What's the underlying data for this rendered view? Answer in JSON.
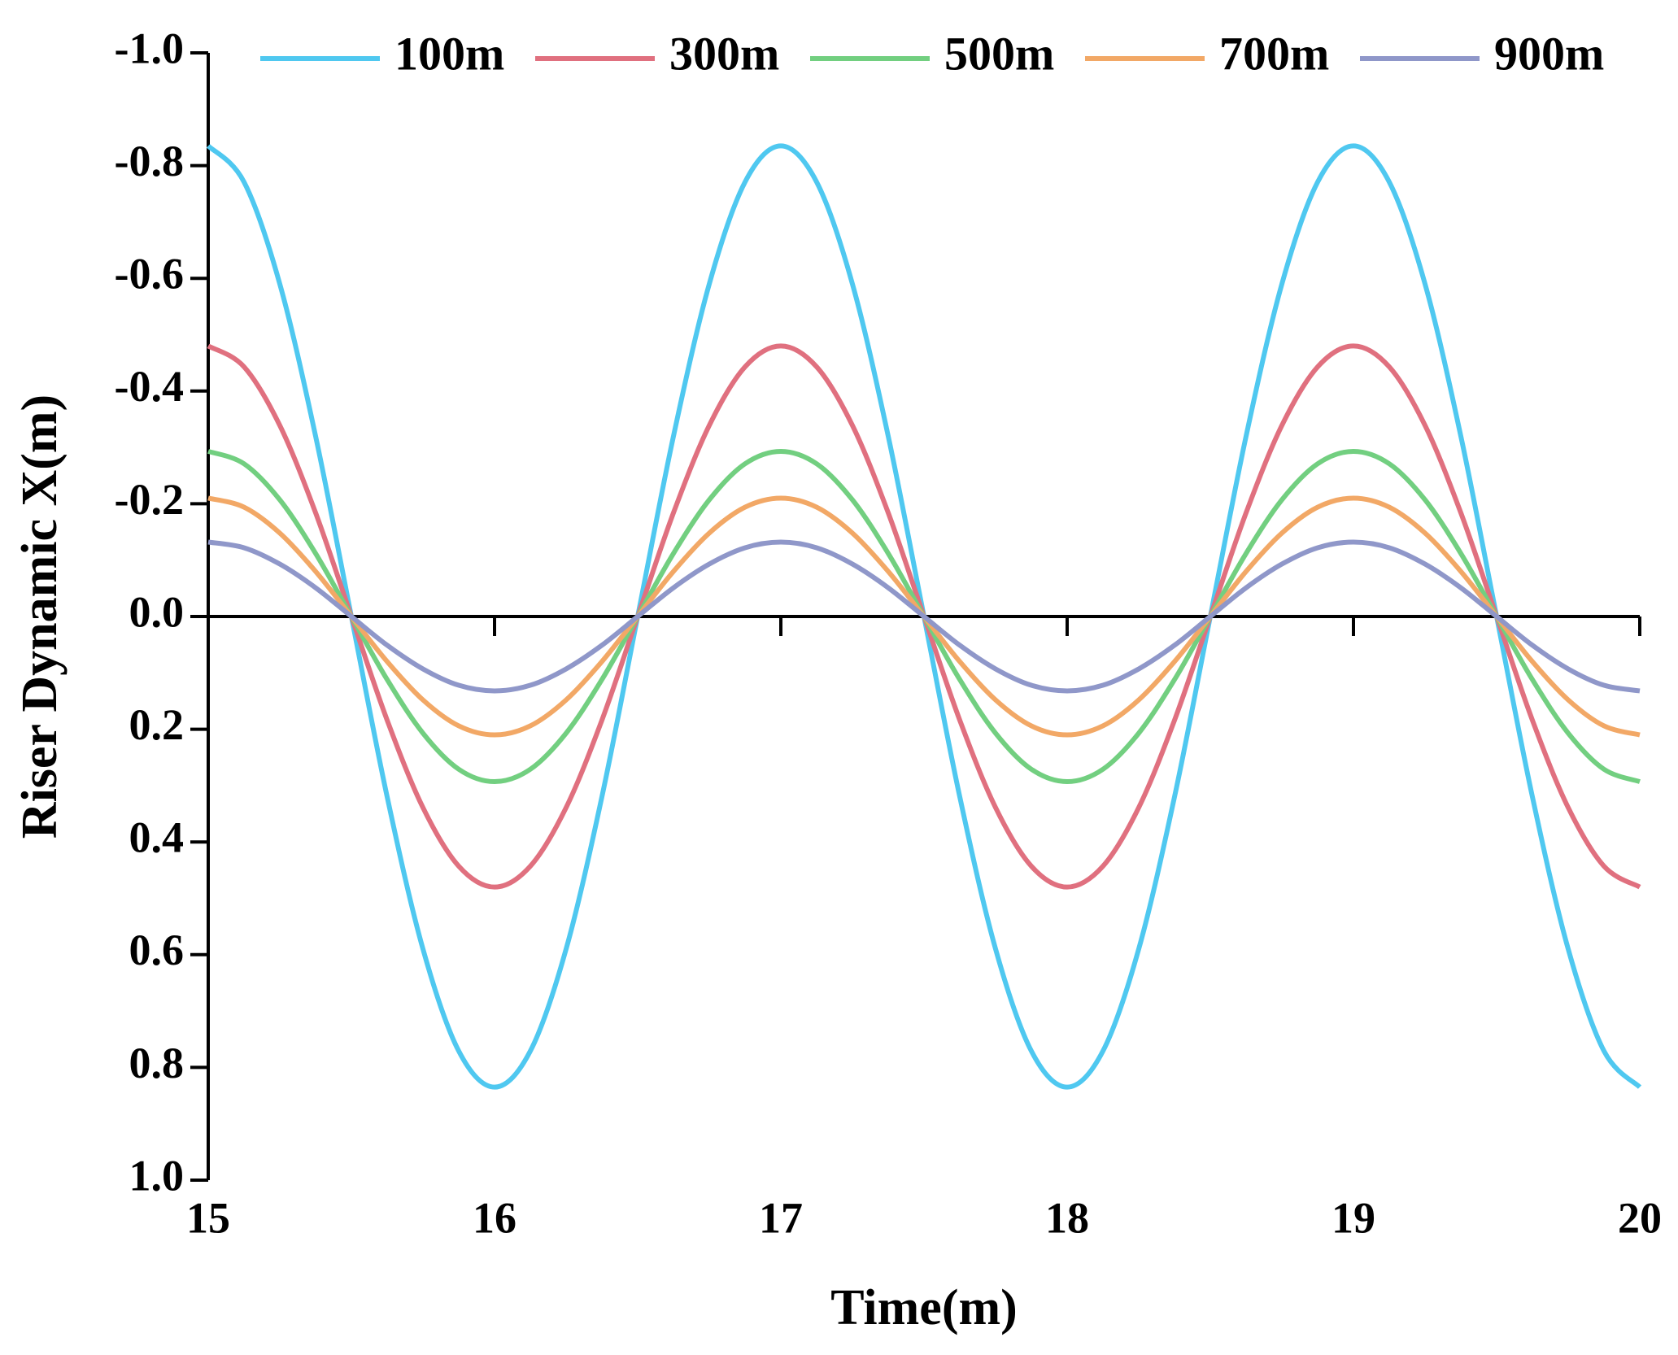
{
  "chart_data": {
    "type": "line",
    "x_label": "Time(m)",
    "y_label": "Riser Dynamic X(m)",
    "x": [
      15,
      15.125,
      15.25,
      15.375,
      15.5,
      15.625,
      15.75,
      15.875,
      16,
      16.125,
      16.25,
      16.375,
      16.5,
      16.625,
      16.75,
      16.875,
      17,
      17.125,
      17.25,
      17.375,
      17.5,
      17.625,
      17.75,
      17.875,
      18,
      18.125,
      18.25,
      18.375,
      18.5,
      18.625,
      18.75,
      18.875,
      19,
      19.125,
      19.25,
      19.375,
      19.5,
      19.625,
      19.75,
      19.875,
      20
    ],
    "series": [
      {
        "name": "100m",
        "color": "#4fc8f0",
        "values": [
          -0.835,
          -0.771,
          -0.59,
          -0.32,
          0,
          0.32,
          0.59,
          0.771,
          0.835,
          0.771,
          0.59,
          0.32,
          0,
          -0.32,
          -0.59,
          -0.771,
          -0.835,
          -0.771,
          -0.59,
          -0.32,
          0,
          0.32,
          0.59,
          0.771,
          0.835,
          0.771,
          0.59,
          0.32,
          0,
          -0.32,
          -0.59,
          -0.771,
          -0.835,
          -0.771,
          -0.59,
          -0.32,
          0,
          0.32,
          0.59,
          0.771,
          0.835
        ]
      },
      {
        "name": "300m",
        "color": "#e0707f",
        "values": [
          -0.48,
          -0.443,
          -0.339,
          -0.184,
          0,
          0.184,
          0.339,
          0.443,
          0.48,
          0.443,
          0.339,
          0.184,
          0,
          -0.184,
          -0.339,
          -0.443,
          -0.48,
          -0.443,
          -0.339,
          -0.184,
          0,
          0.184,
          0.339,
          0.443,
          0.48,
          0.443,
          0.339,
          0.184,
          0,
          -0.184,
          -0.339,
          -0.443,
          -0.48,
          -0.443,
          -0.339,
          -0.184,
          0,
          0.184,
          0.339,
          0.443,
          0.48
        ]
      },
      {
        "name": "500m",
        "color": "#72cf80",
        "values": [
          -0.293,
          -0.271,
          -0.207,
          -0.112,
          0,
          0.112,
          0.207,
          0.271,
          0.293,
          0.271,
          0.207,
          0.112,
          0,
          -0.112,
          -0.207,
          -0.271,
          -0.293,
          -0.271,
          -0.207,
          -0.112,
          0,
          0.112,
          0.207,
          0.271,
          0.293,
          0.271,
          0.207,
          0.112,
          0,
          -0.112,
          -0.207,
          -0.271,
          -0.293,
          -0.271,
          -0.207,
          -0.112,
          0,
          0.112,
          0.207,
          0.271,
          0.293
        ]
      },
      {
        "name": "700m",
        "color": "#f2a866",
        "values": [
          -0.21,
          -0.194,
          -0.148,
          -0.08,
          0,
          0.08,
          0.148,
          0.194,
          0.21,
          0.194,
          0.148,
          0.08,
          0,
          -0.08,
          -0.148,
          -0.194,
          -0.21,
          -0.194,
          -0.148,
          -0.08,
          0,
          0.08,
          0.148,
          0.194,
          0.21,
          0.194,
          0.148,
          0.08,
          0,
          -0.08,
          -0.148,
          -0.194,
          -0.21,
          -0.194,
          -0.148,
          -0.08,
          0,
          0.08,
          0.148,
          0.194,
          0.21
        ]
      },
      {
        "name": "900m",
        "color": "#8f97c9",
        "values": [
          -0.132,
          -0.122,
          -0.093,
          -0.051,
          0,
          0.051,
          0.093,
          0.122,
          0.132,
          0.122,
          0.093,
          0.051,
          0,
          -0.051,
          -0.093,
          -0.122,
          -0.132,
          -0.122,
          -0.093,
          -0.051,
          0,
          0.051,
          0.093,
          0.122,
          0.132,
          0.122,
          0.093,
          0.051,
          0,
          -0.051,
          -0.093,
          -0.122,
          -0.132,
          -0.122,
          -0.093,
          -0.051,
          0,
          0.051,
          0.093,
          0.122,
          0.132
        ]
      }
    ],
    "xlim": [
      15,
      20
    ],
    "xticks": [
      15,
      16,
      17,
      18,
      19,
      20
    ],
    "ylim": [
      1,
      -1
    ],
    "yticks": [
      {
        "value": -1,
        "label": "-1.0"
      },
      -0.8,
      -0.6,
      -0.4,
      -0.2,
      {
        "value": 0,
        "label": "0.0"
      },
      0.2,
      0.4,
      0.6,
      0.8,
      {
        "value": 1,
        "label": "1.0"
      }
    ],
    "legend": "top"
  }
}
